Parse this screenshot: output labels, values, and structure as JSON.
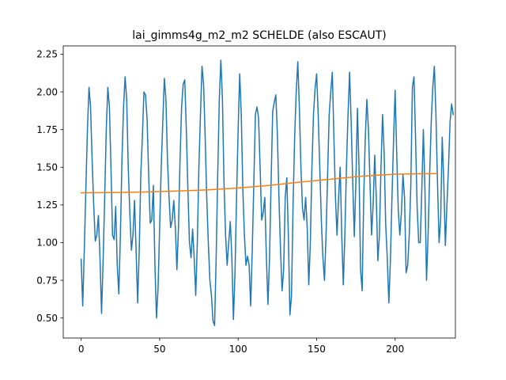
{
  "chart_data": {
    "type": "line",
    "title": "lai_gimms4g_m2_m2 SCHELDE (also ESCAUT)",
    "xlabel": "",
    "ylabel": "",
    "xlim": [
      -11.4,
      238.4
    ],
    "ylim": [
      0.367,
      2.305
    ],
    "xticks": [
      0,
      50,
      100,
      150,
      200
    ],
    "xtick_labels": [
      "0",
      "50",
      "100",
      "150",
      "200"
    ],
    "yticks": [
      0.5,
      0.75,
      1.0,
      1.25,
      1.5,
      1.75,
      2.0,
      2.25
    ],
    "ytick_labels": [
      "0.50",
      "0.75",
      "1.00",
      "1.25",
      "1.50",
      "1.75",
      "2.00",
      "2.25"
    ],
    "grid": false,
    "legend": "none",
    "series": [
      {
        "color": "#1f77b4",
        "points": [
          [
            0,
            0.89
          ],
          [
            1,
            0.58
          ],
          [
            2,
            0.95
          ],
          [
            3,
            1.35
          ],
          [
            4,
            1.75
          ],
          [
            5,
            2.03
          ],
          [
            6,
            1.9
          ],
          [
            7,
            1.55
          ],
          [
            8,
            1.25
          ],
          [
            9,
            1.01
          ],
          [
            10,
            1.05
          ],
          [
            11,
            1.18
          ],
          [
            12,
            0.9
          ],
          [
            13,
            0.53
          ],
          [
            14,
            0.88
          ],
          [
            15,
            1.3
          ],
          [
            16,
            1.75
          ],
          [
            17,
            2.03
          ],
          [
            18,
            1.9
          ],
          [
            19,
            1.5
          ],
          [
            20,
            1.05
          ],
          [
            21,
            1.02
          ],
          [
            22,
            1.24
          ],
          [
            23,
            0.85
          ],
          [
            24,
            0.66
          ],
          [
            25,
            1.05
          ],
          [
            26,
            1.55
          ],
          [
            27,
            1.9
          ],
          [
            28,
            2.1
          ],
          [
            29,
            1.95
          ],
          [
            30,
            1.5
          ],
          [
            31,
            1.2
          ],
          [
            32,
            0.95
          ],
          [
            33,
            1.05
          ],
          [
            34,
            1.28
          ],
          [
            35,
            0.95
          ],
          [
            36,
            0.6
          ],
          [
            37,
            0.95
          ],
          [
            38,
            1.45
          ],
          [
            39,
            1.7
          ],
          [
            40,
            2.0
          ],
          [
            41,
            1.98
          ],
          [
            42,
            1.82
          ],
          [
            43,
            1.45
          ],
          [
            44,
            1.13
          ],
          [
            45,
            1.15
          ],
          [
            46,
            1.38
          ],
          [
            47,
            0.85
          ],
          [
            48,
            0.5
          ],
          [
            49,
            0.7
          ],
          [
            50,
            1.1
          ],
          [
            51,
            1.5
          ],
          [
            52,
            1.8
          ],
          [
            53,
            2.09
          ],
          [
            54,
            1.95
          ],
          [
            55,
            1.55
          ],
          [
            56,
            1.3
          ],
          [
            57,
            1.1
          ],
          [
            58,
            1.15
          ],
          [
            59,
            1.28
          ],
          [
            60,
            1.1
          ],
          [
            61,
            0.82
          ],
          [
            62,
            1.1
          ],
          [
            63,
            1.55
          ],
          [
            64,
            1.9
          ],
          [
            65,
            2.05
          ],
          [
            66,
            2.08
          ],
          [
            67,
            1.75
          ],
          [
            68,
            1.35
          ],
          [
            69,
            1.0
          ],
          [
            70,
            0.9
          ],
          [
            71,
            1.09
          ],
          [
            72,
            0.9
          ],
          [
            73,
            0.65
          ],
          [
            74,
            1.0
          ],
          [
            75,
            1.5
          ],
          [
            76,
            1.85
          ],
          [
            77,
            2.17
          ],
          [
            78,
            2.05
          ],
          [
            79,
            1.7
          ],
          [
            80,
            1.3
          ],
          [
            81,
            1.0
          ],
          [
            82,
            0.75
          ],
          [
            83,
            0.65
          ],
          [
            84,
            0.48
          ],
          [
            85,
            0.45
          ],
          [
            86,
            0.9
          ],
          [
            87,
            1.45
          ],
          [
            88,
            1.95
          ],
          [
            89,
            2.21
          ],
          [
            90,
            1.95
          ],
          [
            91,
            1.4
          ],
          [
            92,
            1.05
          ],
          [
            93,
            0.85
          ],
          [
            94,
            1.0
          ],
          [
            95,
            1.14
          ],
          [
            96,
            0.9
          ],
          [
            97,
            0.49
          ],
          [
            98,
            0.8
          ],
          [
            99,
            1.3
          ],
          [
            100,
            1.75
          ],
          [
            101,
            2.12
          ],
          [
            102,
            1.85
          ],
          [
            103,
            1.35
          ],
          [
            104,
            1.05
          ],
          [
            105,
            0.85
          ],
          [
            106,
            0.91
          ],
          [
            107,
            0.85
          ],
          [
            108,
            0.58
          ],
          [
            109,
            0.95
          ],
          [
            110,
            1.4
          ],
          [
            111,
            1.85
          ],
          [
            112,
            1.9
          ],
          [
            113,
            1.83
          ],
          [
            114,
            1.5
          ],
          [
            115,
            1.15
          ],
          [
            116,
            1.2
          ],
          [
            117,
            1.3
          ],
          [
            118,
            0.9
          ],
          [
            119,
            0.59
          ],
          [
            120,
            0.9
          ],
          [
            121,
            1.4
          ],
          [
            122,
            1.87
          ],
          [
            123,
            1.93
          ],
          [
            124,
            1.98
          ],
          [
            125,
            1.72
          ],
          [
            126,
            1.3
          ],
          [
            127,
            0.95
          ],
          [
            128,
            0.68
          ],
          [
            129,
            0.82
          ],
          [
            130,
            1.3
          ],
          [
            131,
            1.43
          ],
          [
            132,
            1.05
          ],
          [
            133,
            0.52
          ],
          [
            134,
            0.65
          ],
          [
            135,
            1.25
          ],
          [
            136,
            1.7
          ],
          [
            137,
            2.0
          ],
          [
            138,
            2.2
          ],
          [
            139,
            1.9
          ],
          [
            140,
            1.5
          ],
          [
            141,
            1.23
          ],
          [
            142,
            1.15
          ],
          [
            143,
            1.3
          ],
          [
            144,
            1.1
          ],
          [
            145,
            0.72
          ],
          [
            146,
            1.0
          ],
          [
            147,
            1.5
          ],
          [
            148,
            1.85
          ],
          [
            149,
            2.02
          ],
          [
            150,
            2.12
          ],
          [
            151,
            1.85
          ],
          [
            152,
            1.5
          ],
          [
            153,
            1.15
          ],
          [
            154,
            0.9
          ],
          [
            155,
            0.75
          ],
          [
            156,
            1.05
          ],
          [
            157,
            1.45
          ],
          [
            158,
            1.85
          ],
          [
            159,
            2.0
          ],
          [
            160,
            2.13
          ],
          [
            161,
            1.7
          ],
          [
            162,
            1.3
          ],
          [
            163,
            1.05
          ],
          [
            164,
            1.3
          ],
          [
            165,
            1.5
          ],
          [
            166,
            1.05
          ],
          [
            167,
            0.72
          ],
          [
            168,
            1.05
          ],
          [
            169,
            1.5
          ],
          [
            170,
            1.85
          ],
          [
            171,
            2.13
          ],
          [
            172,
            1.8
          ],
          [
            173,
            1.4
          ],
          [
            174,
            1.04
          ],
          [
            175,
            1.4
          ],
          [
            176,
            1.89
          ],
          [
            177,
            1.5
          ],
          [
            178,
            0.82
          ],
          [
            179,
            0.68
          ],
          [
            180,
            1.3
          ],
          [
            181,
            1.7
          ],
          [
            182,
            1.95
          ],
          [
            183,
            1.75
          ],
          [
            184,
            1.4
          ],
          [
            185,
            1.05
          ],
          [
            186,
            1.25
          ],
          [
            187,
            1.58
          ],
          [
            188,
            1.3
          ],
          [
            189,
            0.88
          ],
          [
            190,
            1.05
          ],
          [
            191,
            1.5
          ],
          [
            192,
            1.85
          ],
          [
            193,
            1.6
          ],
          [
            194,
            1.12
          ],
          [
            195,
            0.9
          ],
          [
            196,
            0.6
          ],
          [
            197,
            0.88
          ],
          [
            198,
            1.3
          ],
          [
            199,
            1.68
          ],
          [
            200,
            2.01
          ],
          [
            201,
            1.6
          ],
          [
            202,
            1.22
          ],
          [
            203,
            1.05
          ],
          [
            204,
            1.2
          ],
          [
            205,
            1.45
          ],
          [
            206,
            1.3
          ],
          [
            207,
            0.8
          ],
          [
            208,
            0.85
          ],
          [
            209,
            1.05
          ],
          [
            210,
            1.38
          ],
          [
            211,
            2.03
          ],
          [
            212,
            2.1
          ],
          [
            213,
            1.7
          ],
          [
            214,
            1.25
          ],
          [
            215,
            1.0
          ],
          [
            216,
            1.0
          ],
          [
            217,
            1.35
          ],
          [
            218,
            1.75
          ],
          [
            219,
            1.35
          ],
          [
            220,
            0.75
          ],
          [
            221,
            1.05
          ],
          [
            222,
            1.45
          ],
          [
            223,
            1.8
          ],
          [
            224,
            2.03
          ],
          [
            225,
            2.17
          ],
          [
            226,
            1.85
          ],
          [
            227,
            1.4
          ],
          [
            228,
            1.0
          ],
          [
            229,
            1.15
          ],
          [
            230,
            1.7
          ],
          [
            231,
            1.4
          ],
          [
            232,
            0.98
          ],
          [
            233,
            1.25
          ],
          [
            234,
            1.5
          ],
          [
            235,
            1.8
          ],
          [
            236,
            1.92
          ],
          [
            237,
            1.85
          ]
        ]
      },
      {
        "color": "#ff7f0e",
        "points": [
          [
            0,
            1.33
          ],
          [
            20,
            1.332
          ],
          [
            40,
            1.336
          ],
          [
            60,
            1.342
          ],
          [
            80,
            1.35
          ],
          [
            100,
            1.362
          ],
          [
            120,
            1.38
          ],
          [
            140,
            1.402
          ],
          [
            160,
            1.422
          ],
          [
            180,
            1.442
          ],
          [
            200,
            1.454
          ],
          [
            227,
            1.458
          ]
        ]
      }
    ]
  }
}
